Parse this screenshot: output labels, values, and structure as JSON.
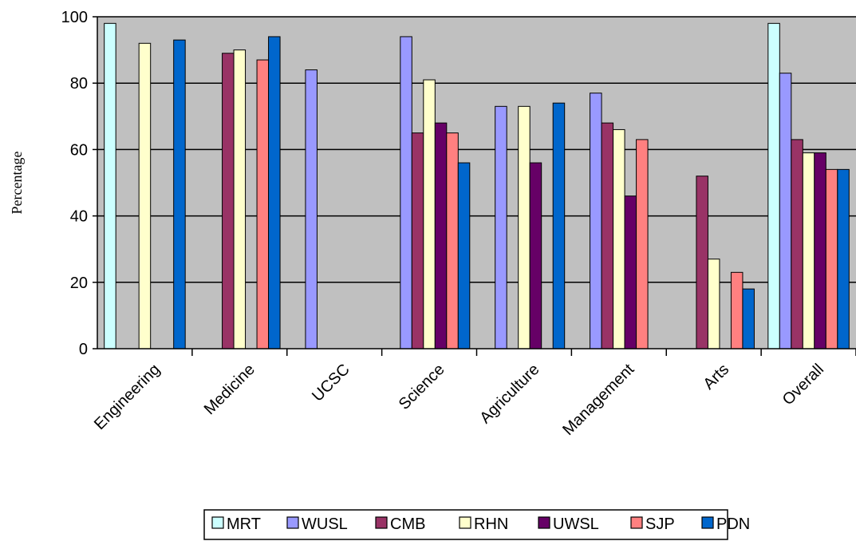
{
  "chart_data": {
    "type": "bar",
    "title": "",
    "xlabel": "",
    "ylabel": "Percentage",
    "ylim": [
      0,
      100
    ],
    "yticks": [
      0,
      20,
      40,
      60,
      80,
      100
    ],
    "grid": "horizontal",
    "plot_background": "#c0c0c0",
    "legend_position": "bottom",
    "categories": [
      "Engineering",
      "Medicine",
      "UCSC",
      "Science",
      "Agriculture",
      "Management",
      "Arts",
      "Overall"
    ],
    "series": [
      {
        "name": "MRT",
        "color": "#ccffff",
        "values": [
          98,
          null,
          null,
          null,
          null,
          null,
          null,
          98
        ]
      },
      {
        "name": "WUSL",
        "color": "#9999ff",
        "values": [
          null,
          null,
          84,
          94,
          73,
          77,
          null,
          83
        ]
      },
      {
        "name": "CMB",
        "color": "#993366",
        "values": [
          null,
          89,
          null,
          65,
          null,
          68,
          52,
          63
        ]
      },
      {
        "name": "RHN",
        "color": "#ffffcc",
        "values": [
          92,
          90,
          null,
          81,
          73,
          66,
          27,
          59
        ]
      },
      {
        "name": "UWSL",
        "color": "#660066",
        "values": [
          null,
          null,
          null,
          68,
          56,
          46,
          null,
          59
        ]
      },
      {
        "name": "SJP",
        "color": "#ff8080",
        "values": [
          null,
          87,
          null,
          65,
          null,
          63,
          23,
          54
        ]
      },
      {
        "name": "PDN",
        "color": "#0066cc",
        "values": [
          93,
          94,
          null,
          56,
          74,
          null,
          18,
          54
        ]
      }
    ]
  }
}
